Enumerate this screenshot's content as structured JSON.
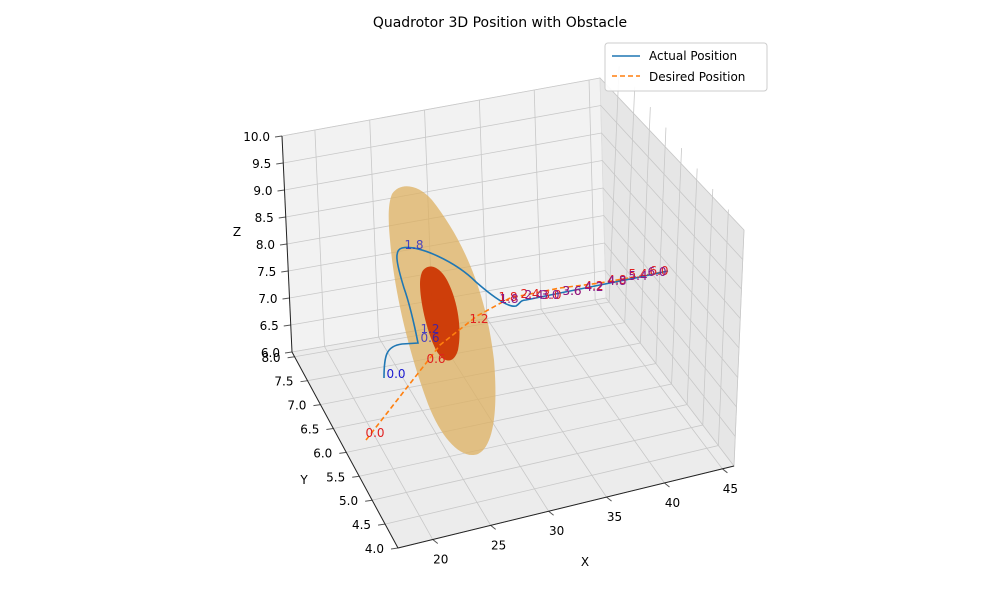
{
  "chart_data": {
    "type": "line3d",
    "title": "Quadrotor 3D Position with Obstacle",
    "xlabel": "X",
    "ylabel": "Y",
    "zlabel": "Z",
    "xlim": [
      17,
      46
    ],
    "ylim": [
      4.0,
      8.1
    ],
    "zlim": [
      6.0,
      10.0
    ],
    "xticks": [
      "20",
      "25",
      "30",
      "35",
      "40",
      "45"
    ],
    "yticks": [
      "4.0",
      "4.5",
      "5.0",
      "5.5",
      "6.0",
      "6.5",
      "7.0",
      "7.5",
      "8.0"
    ],
    "zticks": [
      "6.0",
      "6.5",
      "7.0",
      "7.5",
      "8.0",
      "8.5",
      "9.0",
      "9.5",
      "10.0"
    ],
    "grid": true,
    "legend_position": "upper right",
    "series": [
      {
        "name": "Actual Position",
        "color": "#1f77b4",
        "style": "solid",
        "time_labels": [
          "0.0",
          "0.6",
          "1.2",
          "1.8",
          "1.8",
          "2.4",
          "3.0",
          "3.6",
          "4.2",
          "4.8",
          "5.4",
          "6.0"
        ],
        "label_color": "#1a1ad0"
      },
      {
        "name": "Desired Position",
        "color": "#ff7f0e",
        "style": "dashed",
        "time_labels": [
          "0.0",
          "0.6",
          "1.2",
          "1.8",
          "2.4",
          "3.0",
          "3.6",
          "4.2",
          "4.8",
          "5.4",
          "6.0"
        ],
        "label_color": "#e02020"
      }
    ],
    "obstacle": {
      "outer_color": "#deb060",
      "inner_color": "#cc3300"
    }
  }
}
